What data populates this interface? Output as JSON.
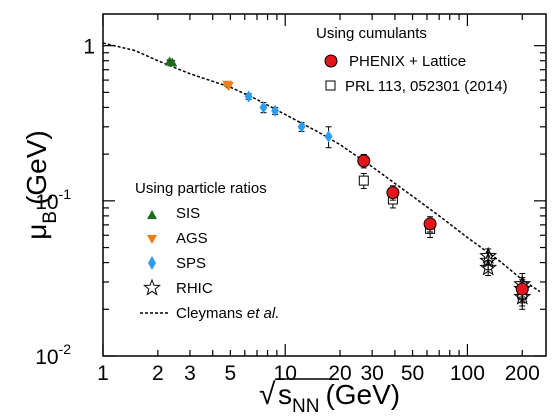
{
  "chart_data": {
    "type": "scatter",
    "xscale": "log",
    "yscale": "log",
    "xlim": [
      1,
      270
    ],
    "ylim": [
      0.01,
      1.6
    ],
    "xlabel": {
      "root": "√",
      "main": "s",
      "sub": "NN",
      "unit": "(GeV)"
    },
    "ylabel": {
      "main": "μ",
      "sub": "B",
      "unit": "(GeV)"
    },
    "x_ticks": [
      {
        "value": 1,
        "label": "1"
      },
      {
        "value": 2,
        "label": "2"
      },
      {
        "value": 3,
        "label": "3"
      },
      {
        "value": 5,
        "label": "5"
      },
      {
        "value": 10,
        "label": "10"
      },
      {
        "value": 20,
        "label": "20"
      },
      {
        "value": 30,
        "label": "30"
      },
      {
        "value": 50,
        "label": "50"
      },
      {
        "value": 100,
        "label": "100"
      },
      {
        "value": 200,
        "label": "200"
      }
    ],
    "y_ticks": [
      {
        "value": 1,
        "label": "1",
        "exp": ""
      },
      {
        "value": 0.1,
        "label": "10",
        "exp": "-1"
      },
      {
        "value": 0.01,
        "label": "10",
        "exp": "-2"
      }
    ],
    "legend_cumulants": {
      "title": "Using cumulants",
      "entries": [
        "PHENIX + Lattice",
        "PRL 113, 052301 (2014)"
      ]
    },
    "legend_ratios": {
      "title": "Using particle ratios",
      "entries": [
        "SIS",
        "AGS",
        "SPS",
        "RHIC"
      ],
      "curve_label_main": "Cleymans ",
      "curve_label_italic": "et al."
    },
    "series": [
      {
        "name": "SIS",
        "marker": "triangle-up",
        "color": "#1e6b1e",
        "x": [
          2.32,
          2.4
        ],
        "y": [
          0.79,
          0.78
        ],
        "yerr": [
          0.02,
          0.02
        ]
      },
      {
        "name": "AGS",
        "marker": "triangle-down",
        "color": "#ef7d1a",
        "x": [
          4.8,
          4.9
        ],
        "y": [
          0.56,
          0.55
        ],
        "yerr": [
          0.01,
          0.01
        ]
      },
      {
        "name": "SPS",
        "marker": "diamond",
        "color": "#2d9df0",
        "x": [
          6.3,
          7.6,
          8.8,
          12.3,
          17.3
        ],
        "y": [
          0.47,
          0.4,
          0.38,
          0.3,
          0.26
        ],
        "yerr": [
          0.02,
          0.03,
          0.02,
          0.02,
          0.04
        ]
      },
      {
        "name": "PHENIX + Lattice",
        "marker": "circle",
        "color": "#e3161b",
        "x": [
          27,
          39,
          62.4,
          200
        ],
        "y": [
          0.181,
          0.113,
          0.071,
          0.027
        ],
        "yerr": [
          0.018,
          0.012,
          0.008,
          0.005
        ]
      },
      {
        "name": "PRL 113, 052301 (2014)",
        "marker": "square",
        "color": "#000000",
        "x": [
          27,
          39,
          62.4,
          200
        ],
        "y": [
          0.135,
          0.102,
          0.066,
          0.025
        ],
        "yerr": [
          0.015,
          0.012,
          0.008,
          0.005
        ]
      },
      {
        "name": "RHIC",
        "marker": "star",
        "color": "#000000",
        "x": [
          130,
          130,
          130,
          200,
          200,
          200
        ],
        "y": [
          0.044,
          0.041,
          0.037,
          0.029,
          0.027,
          0.024
        ],
        "yerr": [
          0.005,
          0.005,
          0.004,
          0.005,
          0.004,
          0.003
        ]
      }
    ],
    "curve": {
      "name": "Cleymans et al.",
      "x": [
        1,
        1.5,
        2,
        3,
        5,
        7,
        10,
        15,
        20,
        30,
        50,
        70,
        100,
        150,
        200,
        250
      ],
      "y": [
        1.04,
        0.93,
        0.8,
        0.66,
        0.54,
        0.45,
        0.36,
        0.28,
        0.23,
        0.166,
        0.107,
        0.08,
        0.058,
        0.041,
        0.031,
        0.026
      ]
    }
  }
}
